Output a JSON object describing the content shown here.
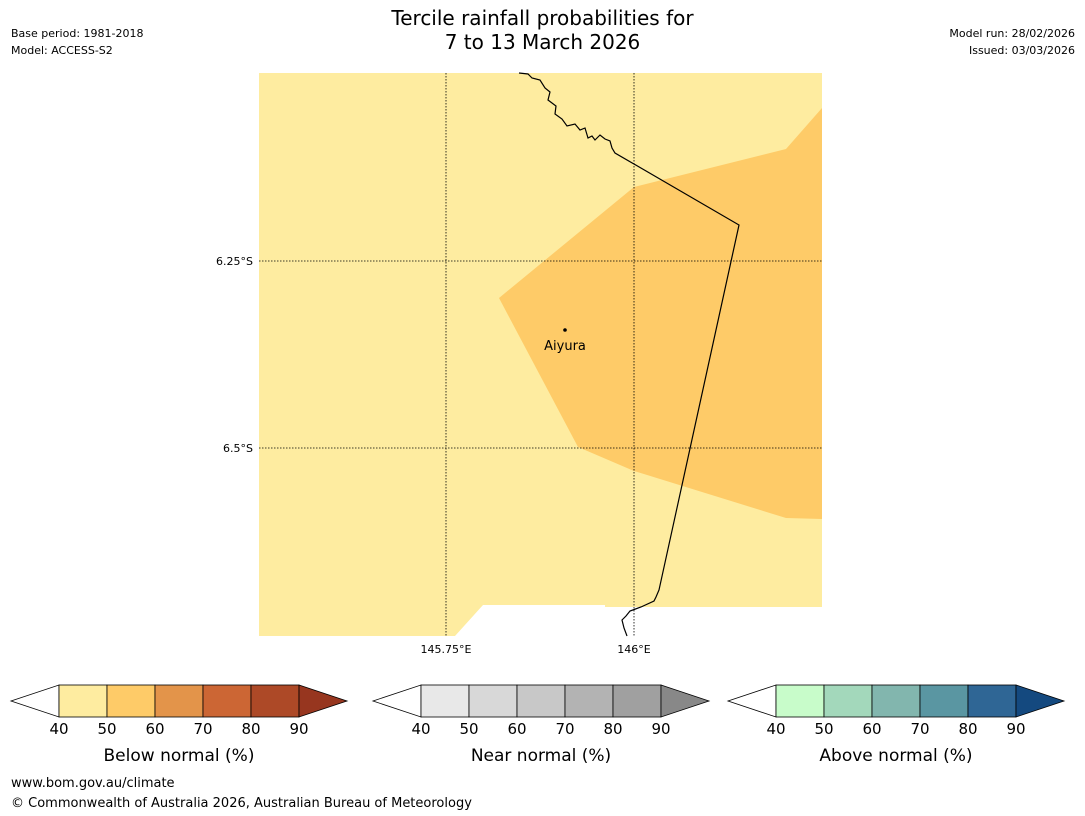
{
  "title_line1": "Tercile rainfall probabilities for",
  "title_line2": "7 to 13 March 2026",
  "meta_left": [
    "Base period: 1981-2018",
    "Model: ACCESS-S2"
  ],
  "meta_right": [
    "Model run: 28/02/2026",
    "Issued: 03/03/2026"
  ],
  "map": {
    "lat_labels": [
      "6.25°S",
      "6.5°S"
    ],
    "lon_labels": [
      "145.75°E",
      "146°E"
    ],
    "place": "Aiyura",
    "colors": {
      "band_40_50": "#feeca0",
      "band_50_60": "#fecb68"
    }
  },
  "colorbars": [
    {
      "label": "Below normal (%)",
      "ticks": [
        "40",
        "50",
        "60",
        "70",
        "80",
        "90"
      ],
      "colors": [
        "#feeca0",
        "#fecb68",
        "#e3944a",
        "#cc6634",
        "#ad4927"
      ],
      "extend_color": "#97361f"
    },
    {
      "label": "Near normal (%)",
      "ticks": [
        "40",
        "50",
        "60",
        "70",
        "80",
        "90"
      ],
      "colors": [
        "#e8e8e8",
        "#d8d8d8",
        "#c8c8c8",
        "#b3b3b3",
        "#a0a0a0"
      ],
      "extend_color": "#888888"
    },
    {
      "label": "Above normal (%)",
      "ticks": [
        "40",
        "50",
        "60",
        "70",
        "80",
        "90"
      ],
      "colors": [
        "#c8fcca",
        "#a3d8bb",
        "#82b6ae",
        "#5a96a2",
        "#2f6695"
      ],
      "extend_color": "#14497f"
    }
  ],
  "footer": {
    "url": "www.bom.gov.au/climate",
    "copyright": "© Commonwealth of Australia 2026, Australian Bureau of Meteorology"
  }
}
